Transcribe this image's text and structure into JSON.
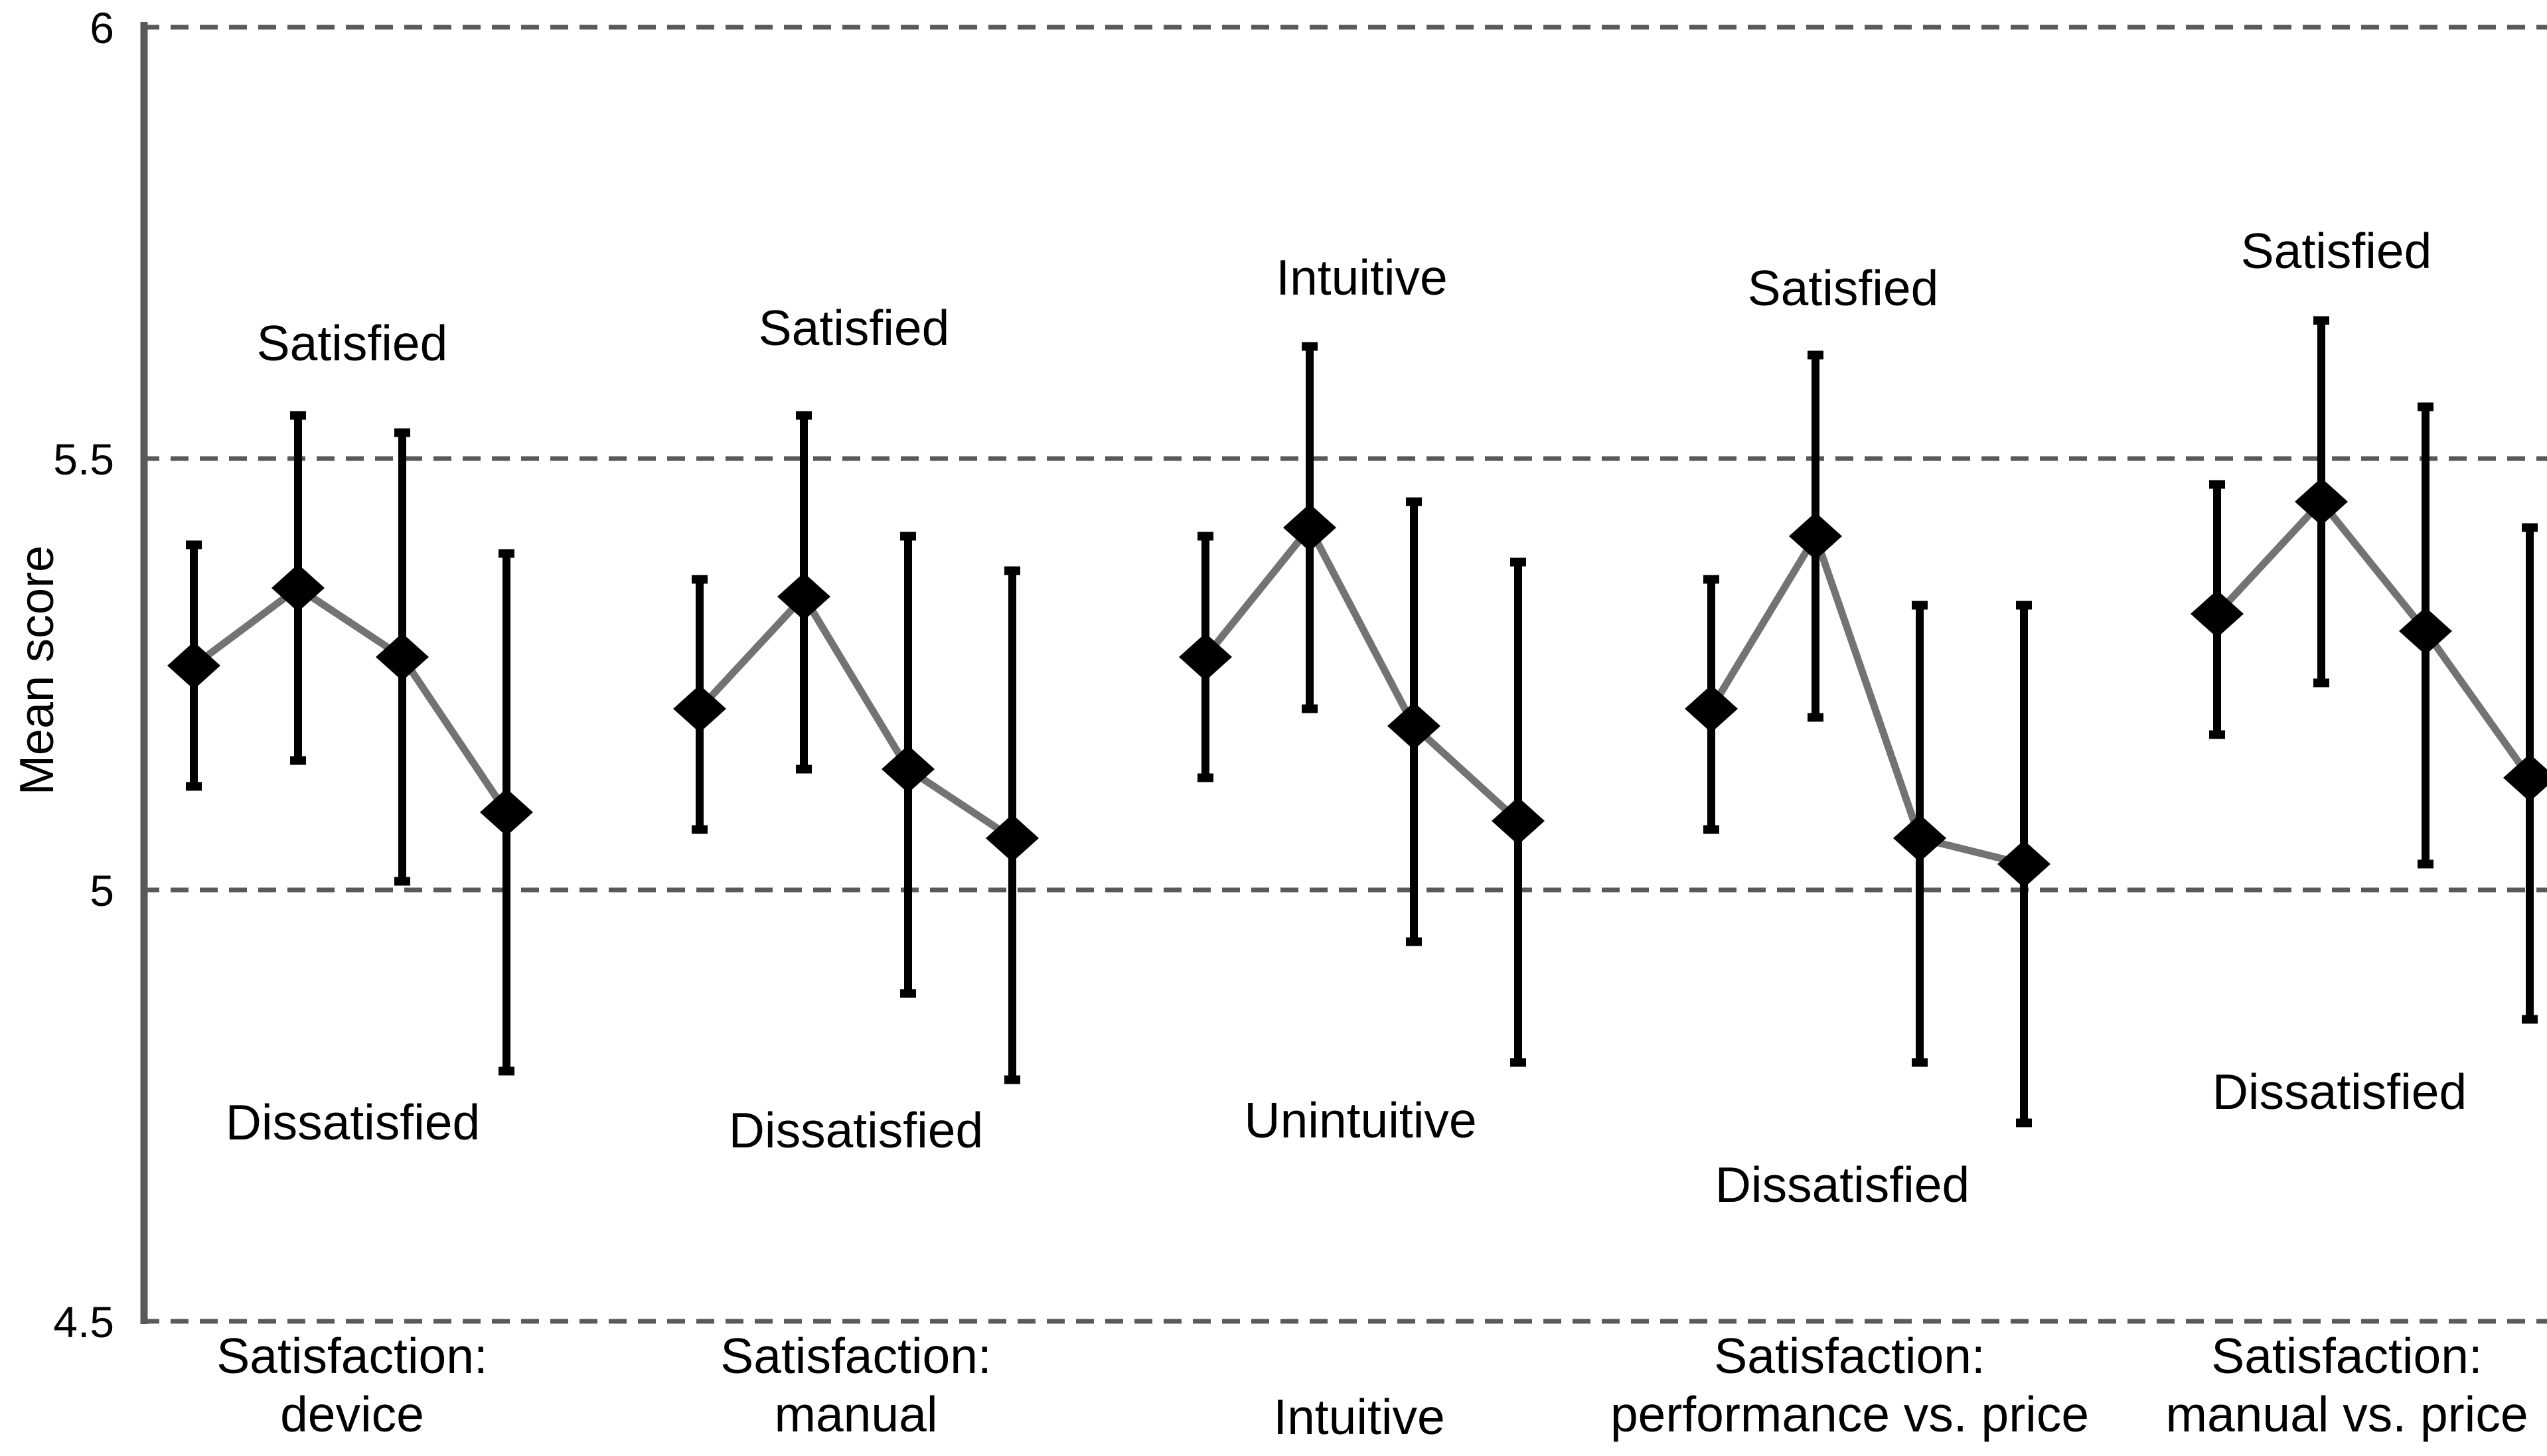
{
  "chart_data": {
    "type": "line",
    "subtype": "means-with-error-bars",
    "title": "",
    "ylabel": "Mean score",
    "xlabel": "",
    "ylim": [
      4.5,
      6.0
    ],
    "grid": "horizontal-dashed",
    "legend_position": "none",
    "yticks": [
      {
        "value": 6.0,
        "label": "6"
      },
      {
        "value": 5.5,
        "label": "5.5"
      },
      {
        "value": 5.0,
        "label": "5"
      },
      {
        "value": 4.5,
        "label": "4.5"
      }
    ],
    "groups": [
      {
        "category_lines": [
          "Satisfaction:",
          "device"
        ],
        "annotation_top": "Satisfied",
        "annotation_bottom": "Dissatisfied",
        "points": [
          {
            "mean": 5.26,
            "err_low": 5.12,
            "err_high": 5.4
          },
          {
            "mean": 5.35,
            "err_low": 5.15,
            "err_high": 5.55
          },
          {
            "mean": 5.27,
            "err_low": 5.01,
            "err_high": 5.53
          },
          {
            "mean": 5.09,
            "err_low": 4.79,
            "err_high": 5.39
          }
        ]
      },
      {
        "category_lines": [
          "Satisfaction:",
          "manual"
        ],
        "annotation_top": "Satisfied",
        "annotation_bottom": "Dissatisfied",
        "points": [
          {
            "mean": 5.21,
            "err_low": 5.07,
            "err_high": 5.36
          },
          {
            "mean": 5.34,
            "err_low": 5.14,
            "err_high": 5.55
          },
          {
            "mean": 5.14,
            "err_low": 4.88,
            "err_high": 5.41
          },
          {
            "mean": 5.06,
            "err_low": 4.78,
            "err_high": 5.37
          }
        ]
      },
      {
        "category_lines": [
          "Intuitive"
        ],
        "annotation_top": "Intuitive",
        "annotation_bottom": "Unintuitive",
        "points": [
          {
            "mean": 5.27,
            "err_low": 5.13,
            "err_high": 5.41
          },
          {
            "mean": 5.42,
            "err_low": 5.21,
            "err_high": 5.63
          },
          {
            "mean": 5.19,
            "err_low": 4.94,
            "err_high": 5.45
          },
          {
            "mean": 5.08,
            "err_low": 4.8,
            "err_high": 5.38
          }
        ]
      },
      {
        "category_lines": [
          "Satisfaction:",
          "performance vs. price"
        ],
        "annotation_top": "Satisfied",
        "annotation_bottom": "Dissatisfied",
        "points": [
          {
            "mean": 5.21,
            "err_low": 5.07,
            "err_high": 5.36
          },
          {
            "mean": 5.41,
            "err_low": 5.2,
            "err_high": 5.62
          },
          {
            "mean": 5.06,
            "err_low": 4.8,
            "err_high": 5.33
          },
          {
            "mean": 5.03,
            "err_low": 4.73,
            "err_high": 5.33
          }
        ]
      },
      {
        "category_lines": [
          "Satisfaction:",
          "manual vs. price"
        ],
        "annotation_top": "Satisfied",
        "annotation_bottom": "Dissatisfied",
        "points": [
          {
            "mean": 5.32,
            "err_low": 5.18,
            "err_high": 5.47
          },
          {
            "mean": 5.45,
            "err_low": 5.24,
            "err_high": 5.66
          },
          {
            "mean": 5.3,
            "err_low": 5.03,
            "err_high": 5.56
          },
          {
            "mean": 5.13,
            "err_low": 4.85,
            "err_high": 5.42
          }
        ]
      }
    ]
  },
  "colors": {
    "background": "#ffffff",
    "axis": "#595959",
    "gridline": "#595959",
    "connector": "#737373",
    "marker": "#000000",
    "error_bar": "#000000",
    "text": "#000000"
  }
}
